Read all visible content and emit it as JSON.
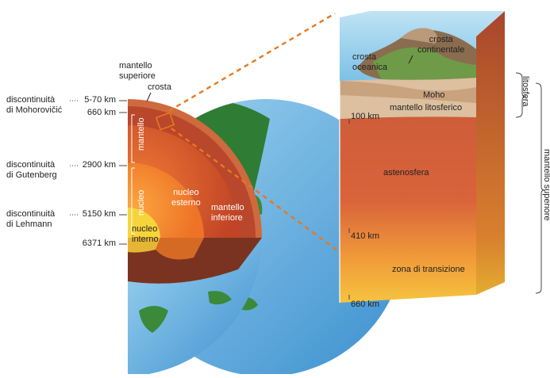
{
  "labels": {
    "mantello_superiore_top": "mantello\nsuperiore",
    "crosta": "crosta",
    "disc_mohorovicic": "discontinuità\ndi Mohorovičić",
    "disc_gutenberg": "discontinuità\ndi Gutenberg",
    "disc_lehmann": "discontinuità\ndi Lehmann",
    "mantello_vertical": "mantello",
    "nucleo_vertical": "nucleo",
    "nucleo_esterno": "nucleo\nesterno",
    "nucleo_interno": "nucleo\ninterno",
    "mantello_inferiore": "mantello\ninferiore",
    "crosta_oceanica": "crosta\noceanica",
    "crosta_continentale": "crosta\ncontinentale",
    "moho": "Moho",
    "mantello_litosferico": "mantello litosferico",
    "astenosfera": "astenosfera",
    "zona_di_transizione": "zona di transizione",
    "litosfera": "litosfera",
    "mantello_superiore_side": "mantello superiore"
  },
  "depths": {
    "d1": "5-70 km",
    "d2": "660 km",
    "d3": "2900 km",
    "d4": "5150 km",
    "d5": "6371 km"
  },
  "block_depths": {
    "b1": "100 km",
    "b2": "410 km",
    "b3": "660 km"
  },
  "colors": {
    "ocean": "#5aa9dd",
    "land": "#2e7d32",
    "crust": "#c9a27e",
    "upper_mantle": "#b5462a",
    "lower_mantle": "#e4592a",
    "outer_core": "#f28a2e",
    "inner_core": "#f7d23e",
    "leader": "#e8781e"
  }
}
